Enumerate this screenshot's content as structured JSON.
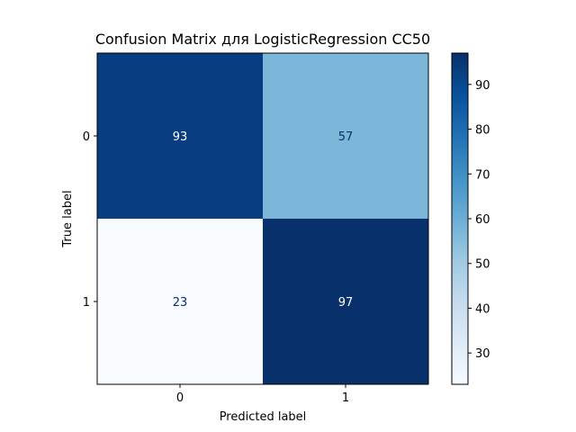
{
  "chart_data": {
    "type": "heatmap",
    "title": "Confusion Matrix для LogisticRegression CC50",
    "xlabel": "Predicted label",
    "ylabel": "True label",
    "x_categories": [
      "0",
      "1"
    ],
    "y_categories": [
      "0",
      "1"
    ],
    "values": [
      [
        93,
        57
      ],
      [
        23,
        97
      ]
    ],
    "colormap": "Blues",
    "colorbar": {
      "min": 23,
      "max": 97,
      "ticks": [
        30,
        40,
        50,
        60,
        70,
        80,
        90
      ]
    },
    "text_colors": {
      "dark_cell": "#ffffff",
      "light_cell": "#08306b"
    },
    "colormap_stops": [
      "#f7fbff",
      "#deebf7",
      "#c6dbef",
      "#9ecae1",
      "#6baed6",
      "#4292c6",
      "#2171b5",
      "#08519c",
      "#08306b"
    ]
  }
}
